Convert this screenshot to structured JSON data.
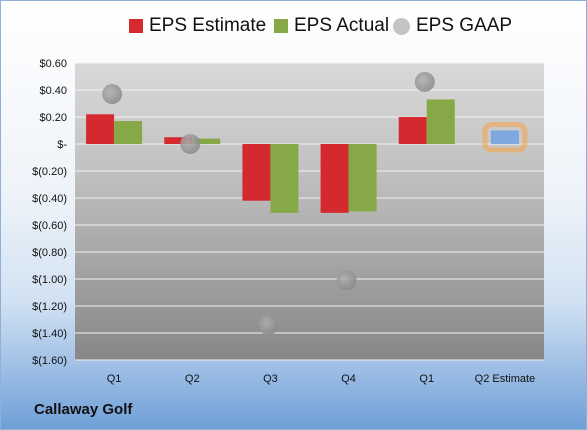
{
  "chart_data": {
    "type": "bar",
    "categories": [
      "Q1",
      "Q2",
      "Q3",
      "Q4",
      "Q1",
      "Q2 Estimate"
    ],
    "series": [
      {
        "name": "EPS Estimate",
        "type": "bar",
        "color": "#d42a2f",
        "values": [
          0.22,
          0.05,
          -0.42,
          -0.51,
          0.2,
          null
        ]
      },
      {
        "name": "EPS Actual",
        "type": "bar",
        "color": "#86a846",
        "values": [
          0.17,
          0.04,
          -0.51,
          -0.5,
          0.33,
          null
        ]
      },
      {
        "name": "EPS GAAP",
        "type": "scatter",
        "color": "#a9a9a9",
        "values": [
          0.37,
          0.0,
          -1.34,
          -1.01,
          0.46,
          null
        ]
      },
      {
        "name": "",
        "type": "bar",
        "color": "#7fa7e0",
        "highlight": "#f3a54c",
        "values": [
          null,
          null,
          null,
          null,
          null,
          0.1
        ]
      }
    ],
    "ylim": [
      -1.6,
      0.6
    ],
    "yticks": [
      0.6,
      0.4,
      0.2,
      0,
      -0.2,
      -0.4,
      -0.6,
      -0.8,
      -1.0,
      -1.2,
      -1.4,
      -1.6
    ],
    "ytick_labels": [
      "$0.60",
      "$0.40",
      "$0.20",
      "$-",
      "$(0.20)",
      "$(0.40)",
      "$(0.60)",
      "$(0.80)",
      "$(1.00)",
      "$(1.20)",
      "$(1.40)",
      "$(1.60)"
    ],
    "grid": true,
    "legend_position": "top",
    "title": "",
    "xlabel": "",
    "ylabel": ""
  },
  "legend": [
    {
      "label": "EPS Estimate",
      "color": "#d42a2f",
      "shape": "square"
    },
    {
      "label": "EPS Actual",
      "color": "#86a846",
      "shape": "square"
    },
    {
      "label": "EPS GAAP",
      "color": "#b4b4b4",
      "shape": "circle"
    }
  ],
  "company": "Callaway Golf"
}
